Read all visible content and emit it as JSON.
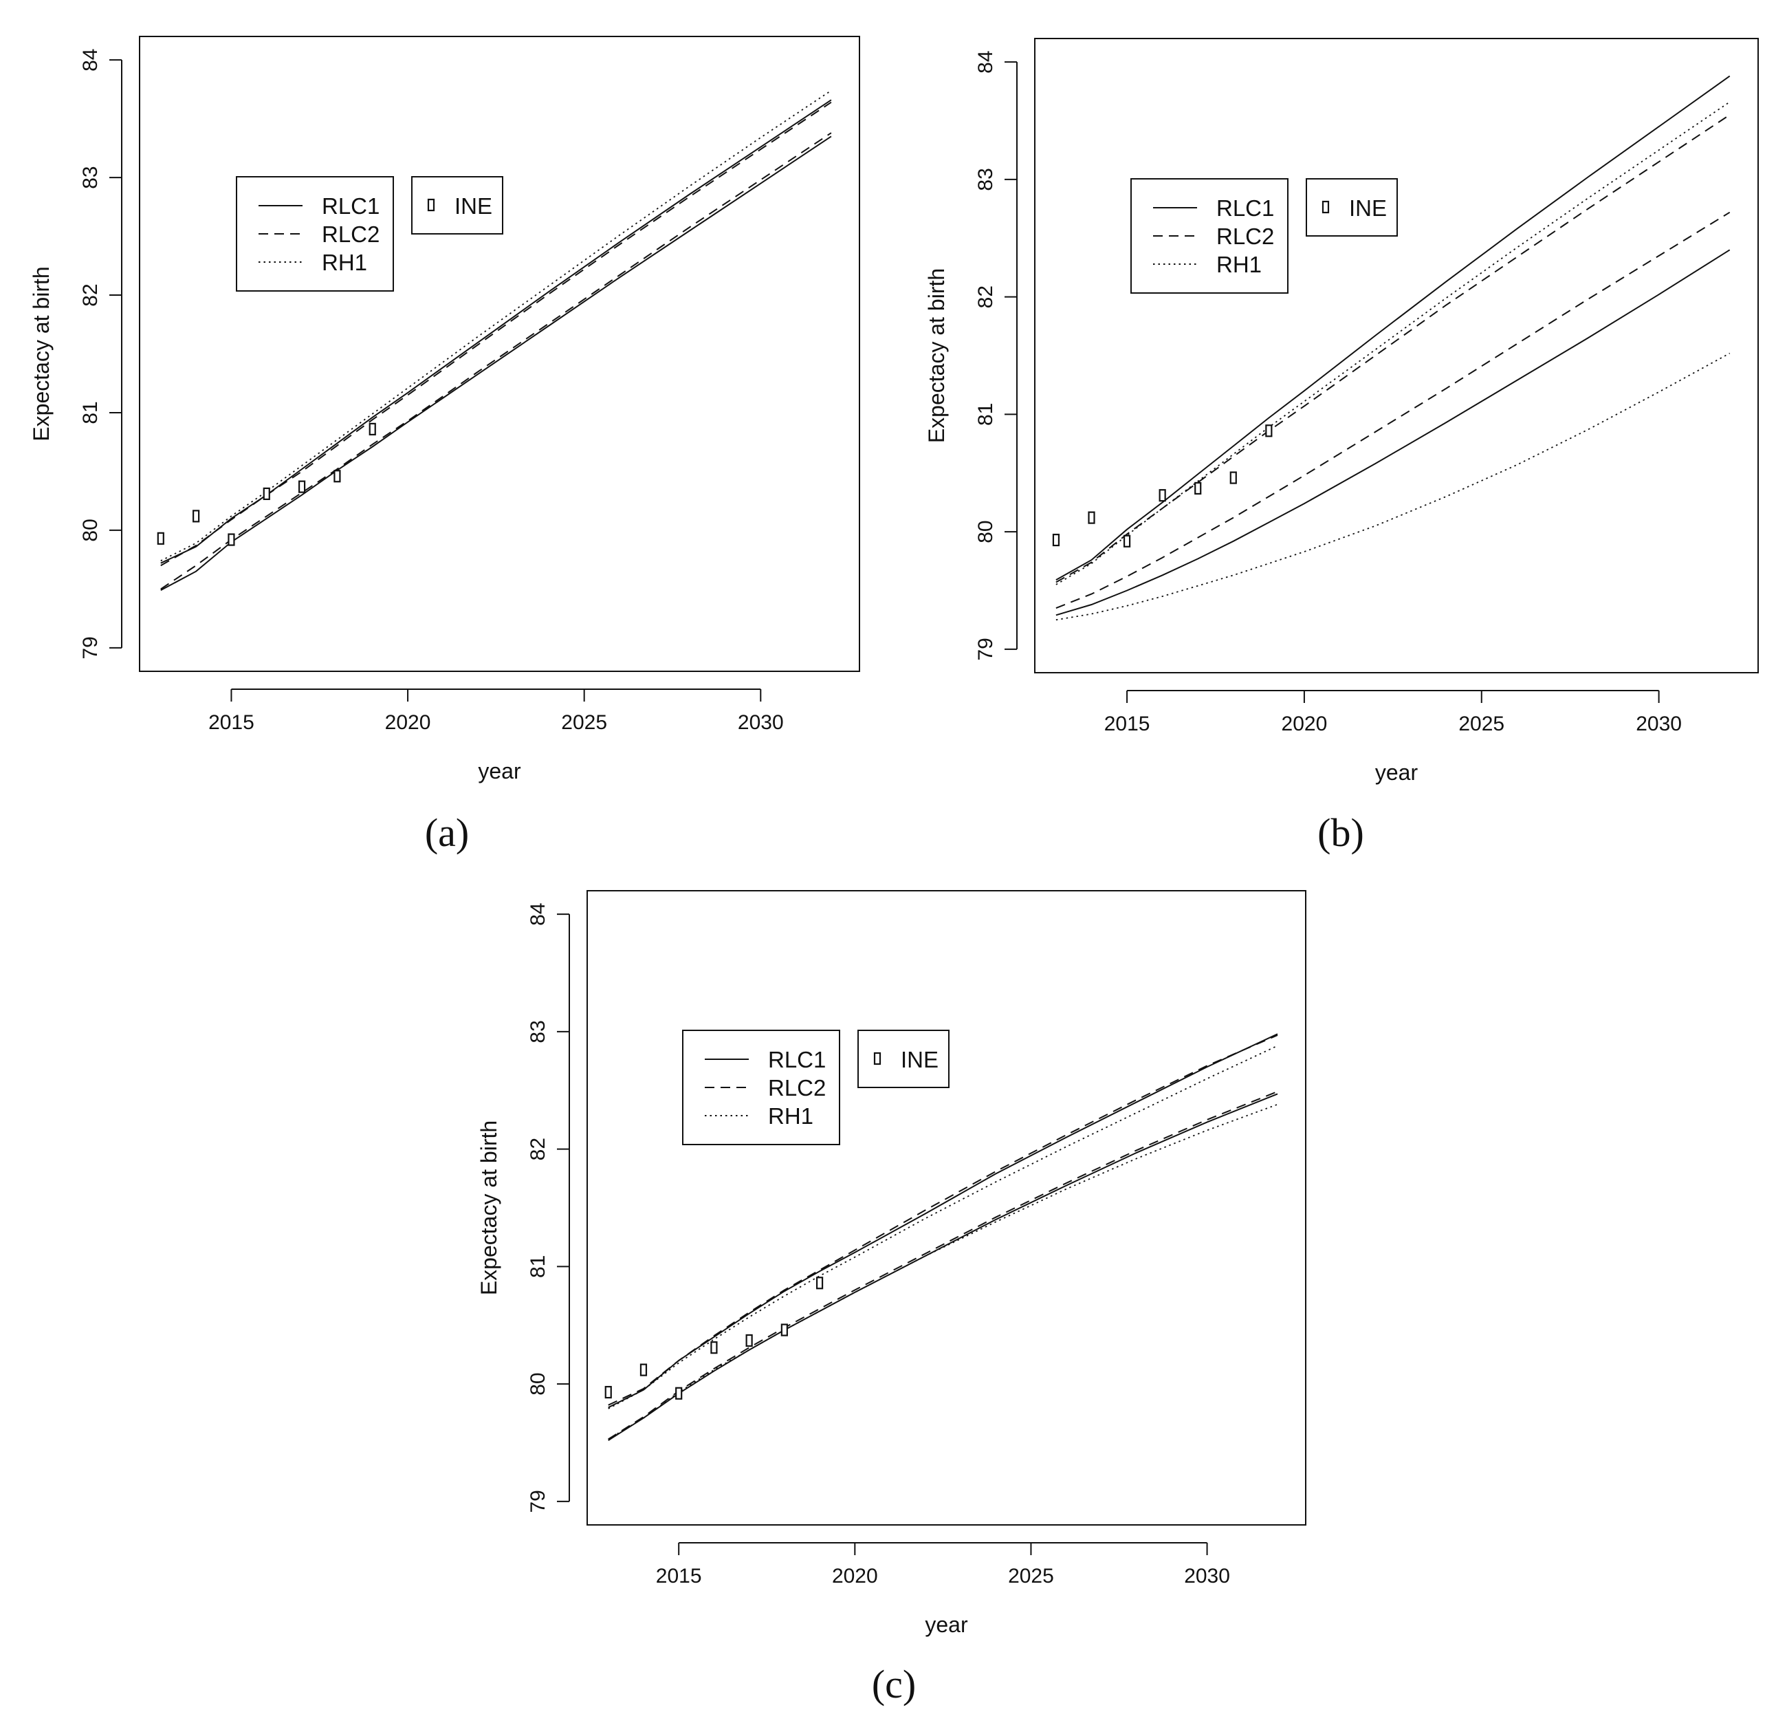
{
  "figure": {
    "panel_labels": [
      "(a)",
      "(b)",
      "(c)"
    ]
  },
  "chart_data": [
    {
      "panel": "(a)",
      "type": "line",
      "xlabel": "year",
      "ylabel": "Expectacy at birth",
      "xlim": [
        2012.4,
        2032.8
      ],
      "ylim": [
        78.8,
        84.2
      ],
      "xticks": [
        2015,
        2020,
        2025,
        2030
      ],
      "yticks": [
        79,
        80,
        81,
        82,
        83,
        84
      ],
      "legend_lines": [
        "RLC1",
        "RLC2",
        "RH1"
      ],
      "legend_points": [
        "INE"
      ],
      "series": [
        {
          "name": "RLC1",
          "style": "solid",
          "x": [
            2013,
            2014,
            2015,
            2016,
            2017,
            2018,
            2019,
            2020,
            2022,
            2024,
            2026,
            2028,
            2030,
            2032
          ],
          "y": [
            79.72,
            79.86,
            80.1,
            80.3,
            80.52,
            80.74,
            80.96,
            81.17,
            81.6,
            82.03,
            82.45,
            82.86,
            83.26,
            83.66
          ]
        },
        {
          "name": "RLC2",
          "style": "dashed",
          "x": [
            2013,
            2014,
            2015,
            2016,
            2017,
            2018,
            2019,
            2020,
            2022,
            2024,
            2026,
            2028,
            2030,
            2032
          ],
          "y": [
            79.7,
            79.87,
            80.09,
            80.3,
            80.5,
            80.72,
            80.94,
            81.15,
            81.58,
            82.01,
            82.43,
            82.84,
            83.24,
            83.64
          ]
        },
        {
          "name": "RH1",
          "style": "dotted",
          "x": [
            2013,
            2014,
            2015,
            2016,
            2017,
            2018,
            2019,
            2020,
            2022,
            2024,
            2026,
            2028,
            2030,
            2032
          ],
          "y": [
            79.74,
            79.89,
            80.12,
            80.33,
            80.55,
            80.77,
            80.99,
            81.21,
            81.65,
            82.08,
            82.51,
            82.93,
            83.34,
            83.74
          ]
        },
        {
          "name": "RLC1",
          "style": "solid",
          "x": [
            2013,
            2014,
            2015,
            2016,
            2017,
            2018,
            2019,
            2020,
            2022,
            2024,
            2026,
            2028,
            2030,
            2032
          ],
          "y": [
            79.49,
            79.65,
            79.9,
            80.1,
            80.3,
            80.51,
            80.71,
            80.92,
            81.33,
            81.74,
            82.15,
            82.55,
            82.95,
            83.35
          ]
        },
        {
          "name": "RLC2",
          "style": "dashed",
          "x": [
            2013,
            2014,
            2015,
            2016,
            2017,
            2018,
            2019,
            2020,
            2022,
            2024,
            2026,
            2028,
            2030,
            2032
          ],
          "y": [
            79.5,
            79.7,
            79.92,
            80.12,
            80.32,
            80.52,
            80.73,
            80.93,
            81.35,
            81.76,
            82.17,
            82.58,
            82.98,
            83.38
          ]
        }
      ],
      "points": {
        "name": "INE",
        "x": [
          2013,
          2014,
          2015,
          2016,
          2017,
          2018,
          2019
        ],
        "y": [
          79.93,
          80.12,
          79.92,
          80.31,
          80.37,
          80.46,
          80.86
        ]
      }
    },
    {
      "panel": "(b)",
      "type": "line",
      "xlabel": "year",
      "ylabel": "Expectacy at birth",
      "xlim": [
        2012.4,
        2032.8
      ],
      "ylim": [
        78.8,
        84.2
      ],
      "xticks": [
        2015,
        2020,
        2025,
        2030
      ],
      "yticks": [
        79,
        80,
        81,
        82,
        83,
        84
      ],
      "legend_lines": [
        "RLC1",
        "RLC2",
        "RH1"
      ],
      "legend_points": [
        "INE"
      ],
      "series": [
        {
          "name": "RLC1",
          "style": "solid",
          "x": [
            2013,
            2014,
            2015,
            2016,
            2017,
            2018,
            2019,
            2020,
            2022,
            2024,
            2026,
            2028,
            2030,
            2032
          ],
          "y": [
            79.59,
            79.76,
            80.02,
            80.25,
            80.49,
            80.73,
            80.97,
            81.2,
            81.67,
            82.13,
            82.58,
            83.02,
            83.45,
            83.88
          ]
        },
        {
          "name": "RLC2",
          "style": "dashed",
          "x": [
            2013,
            2014,
            2015,
            2016,
            2017,
            2018,
            2019,
            2020,
            2022,
            2024,
            2026,
            2028,
            2030,
            2032
          ],
          "y": [
            79.57,
            79.74,
            79.98,
            80.2,
            80.42,
            80.64,
            80.86,
            81.07,
            81.5,
            81.93,
            82.34,
            82.75,
            83.15,
            83.55
          ]
        },
        {
          "name": "RH1",
          "style": "dotted",
          "x": [
            2013,
            2014,
            2015,
            2016,
            2017,
            2018,
            2019,
            2020,
            2022,
            2024,
            2026,
            2028,
            2030,
            2032
          ],
          "y": [
            79.55,
            79.73,
            79.97,
            80.2,
            80.43,
            80.66,
            80.89,
            81.11,
            81.55,
            81.99,
            82.42,
            82.84,
            83.25,
            83.66
          ]
        },
        {
          "name": "RLC1",
          "style": "solid",
          "x": [
            2013,
            2014,
            2015,
            2016,
            2017,
            2018,
            2019,
            2020,
            2022,
            2024,
            2026,
            2028,
            2030,
            2032
          ],
          "y": [
            79.29,
            79.38,
            79.5,
            79.63,
            79.77,
            79.92,
            80.08,
            80.24,
            80.58,
            80.93,
            81.29,
            81.65,
            82.02,
            82.4
          ]
        },
        {
          "name": "RLC2",
          "style": "dashed",
          "x": [
            2013,
            2014,
            2015,
            2016,
            2017,
            2018,
            2019,
            2020,
            2022,
            2024,
            2026,
            2028,
            2030,
            2032
          ],
          "y": [
            79.35,
            79.47,
            79.62,
            79.78,
            79.95,
            80.12,
            80.3,
            80.48,
            80.85,
            81.22,
            81.6,
            81.98,
            82.35,
            82.72
          ]
        },
        {
          "name": "RH1",
          "style": "dotted",
          "x": [
            2013,
            2014,
            2015,
            2016,
            2017,
            2018,
            2019,
            2020,
            2022,
            2024,
            2026,
            2028,
            2030,
            2032
          ],
          "y": [
            79.25,
            79.3,
            79.37,
            79.45,
            79.54,
            79.63,
            79.73,
            79.83,
            80.05,
            80.3,
            80.57,
            80.87,
            81.19,
            81.52
          ]
        }
      ],
      "points": {
        "name": "INE",
        "x": [
          2013,
          2014,
          2015,
          2016,
          2017,
          2018,
          2019
        ],
        "y": [
          79.93,
          80.12,
          79.92,
          80.31,
          80.37,
          80.46,
          80.86
        ]
      }
    },
    {
      "panel": "(c)",
      "type": "line",
      "xlabel": "year",
      "ylabel": "Expectacy at birth",
      "xlim": [
        2012.4,
        2032.8
      ],
      "ylim": [
        78.8,
        84.2
      ],
      "xticks": [
        2015,
        2020,
        2025,
        2030
      ],
      "yticks": [
        79,
        80,
        81,
        82,
        83,
        84
      ],
      "legend_lines": [
        "RLC1",
        "RLC2",
        "RH1"
      ],
      "legend_points": [
        "INE"
      ],
      "series": [
        {
          "name": "RLC1",
          "style": "solid",
          "x": [
            2013,
            2014,
            2015,
            2016,
            2017,
            2018,
            2019,
            2020,
            2022,
            2024,
            2026,
            2028,
            2030,
            2032
          ],
          "y": [
            79.8,
            79.95,
            80.2,
            80.4,
            80.6,
            80.79,
            80.96,
            81.12,
            81.45,
            81.79,
            82.1,
            82.4,
            82.7,
            82.98
          ]
        },
        {
          "name": "RLC2",
          "style": "dashed",
          "x": [
            2013,
            2014,
            2015,
            2016,
            2017,
            2018,
            2019,
            2020,
            2022,
            2024,
            2026,
            2028,
            2030,
            2032
          ],
          "y": [
            79.82,
            79.96,
            80.2,
            80.41,
            80.61,
            80.8,
            80.97,
            81.14,
            81.48,
            81.81,
            82.12,
            82.42,
            82.71,
            82.97
          ]
        },
        {
          "name": "RH1",
          "style": "dotted",
          "x": [
            2013,
            2014,
            2015,
            2016,
            2017,
            2018,
            2019,
            2020,
            2022,
            2024,
            2026,
            2028,
            2030,
            2032
          ],
          "y": [
            79.79,
            79.95,
            80.18,
            80.38,
            80.57,
            80.75,
            80.92,
            81.08,
            81.41,
            81.72,
            82.02,
            82.31,
            82.6,
            82.88
          ]
        },
        {
          "name": "RLC1",
          "style": "solid",
          "x": [
            2013,
            2014,
            2015,
            2016,
            2017,
            2018,
            2019,
            2020,
            2022,
            2024,
            2026,
            2028,
            2030,
            2032
          ],
          "y": [
            79.52,
            79.71,
            79.92,
            80.11,
            80.29,
            80.46,
            80.62,
            80.78,
            81.09,
            81.4,
            81.69,
            81.97,
            82.23,
            82.47
          ]
        },
        {
          "name": "RLC2",
          "style": "dashed",
          "x": [
            2013,
            2014,
            2015,
            2016,
            2017,
            2018,
            2019,
            2020,
            2022,
            2024,
            2026,
            2028,
            2030,
            2032
          ],
          "y": [
            79.53,
            79.72,
            79.94,
            80.13,
            80.31,
            80.48,
            80.64,
            80.8,
            81.11,
            81.42,
            81.71,
            81.99,
            82.25,
            82.49
          ]
        },
        {
          "name": "RH1",
          "style": "dotted",
          "x": [
            2013,
            2014,
            2015,
            2016,
            2017,
            2018,
            2019,
            2020,
            2022,
            2024,
            2026,
            2028,
            2030,
            2032
          ],
          "y": [
            79.53,
            79.71,
            79.93,
            80.12,
            80.29,
            80.46,
            80.62,
            80.78,
            81.09,
            81.38,
            81.66,
            81.92,
            82.16,
            82.38
          ]
        }
      ],
      "points": {
        "name": "INE",
        "x": [
          2013,
          2014,
          2015,
          2016,
          2017,
          2018,
          2019
        ],
        "y": [
          79.93,
          80.12,
          79.92,
          80.31,
          80.37,
          80.46,
          80.86
        ]
      }
    }
  ]
}
